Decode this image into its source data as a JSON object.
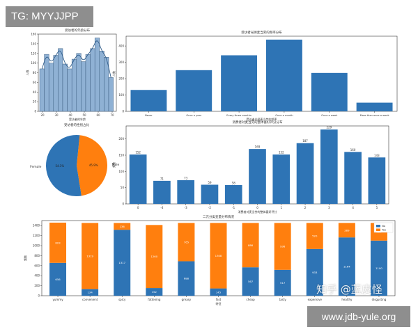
{
  "watermarks": {
    "top_left": "TG: MYYJJPP",
    "bottom_right": "www.jdb-yule.org",
    "overlay": "知乎 @蓝皮怪"
  },
  "colors": {
    "blue": "#2e74b5",
    "orange": "#ff7f0e",
    "hist": "#8fb1d4"
  },
  "chart_data": [
    {
      "id": "age_hist",
      "type": "bar",
      "title": "受访者的年龄分布",
      "xlabel": "受访者的年龄",
      "ylabel": "人数",
      "x_ticks": [
        "20",
        "30",
        "40",
        "50",
        "60",
        "70"
      ],
      "y_ticks": [
        "0",
        "20",
        "40",
        "60",
        "80",
        "100",
        "120",
        "140",
        "160"
      ],
      "xlim": [
        17,
        73
      ],
      "ylim": [
        0,
        160
      ],
      "bin_edges": [
        18,
        21.3,
        24.6,
        27.9,
        31.2,
        34.5,
        37.8,
        41.1,
        44.4,
        47.7,
        51,
        54.3,
        57.6,
        60.9,
        64.2,
        67.5,
        70.8
      ],
      "values": [
        88,
        118,
        100,
        116,
        130,
        98,
        88,
        108,
        120,
        103,
        118,
        130,
        152,
        125,
        112,
        70
      ],
      "kde_line": true
    },
    {
      "id": "frequency_bar",
      "type": "bar",
      "title": "受访者光顾麦当劳的频率分布",
      "xlabel": "受访者光顾麦当劳的频率",
      "ylabel": "人数",
      "categories": [
        "Never",
        "Once a year",
        "Every three months",
        "Once a month",
        "Once a week",
        "More than once a week"
      ],
      "values": [
        131,
        252,
        343,
        439,
        235,
        53
      ],
      "y_ticks": [
        "0",
        "100",
        "200",
        "300",
        "400"
      ],
      "ylim": [
        0,
        460
      ]
    },
    {
      "id": "gender_pie",
      "type": "pie",
      "title": "受访者的性别占比",
      "labels": [
        "Male",
        "Female"
      ],
      "percent_labels": [
        "45.9%",
        "54.1%"
      ],
      "values": [
        45.9,
        54.1
      ]
    },
    {
      "id": "like_bar",
      "type": "bar",
      "title": "消费者对麦当劳的整体喜好评分分布",
      "xlabel": "消费者对麦当劳的整体喜好评分",
      "ylabel": "频数",
      "categories": [
        "0",
        "-4",
        "-3",
        "-2",
        "-1",
        "0",
        "1",
        "2",
        "3",
        "4",
        "5"
      ],
      "values": [
        152,
        71,
        73,
        59,
        58,
        169,
        152,
        187,
        229,
        160,
        143
      ],
      "y_ticks": [
        "0",
        "50",
        "100",
        "150",
        "200"
      ],
      "ylim": [
        0,
        240
      ]
    },
    {
      "id": "attr_stacked",
      "type": "bar",
      "title": "二元分类变量分布情况",
      "xlabel": "特征",
      "ylabel": "频数",
      "categories": [
        "yummy",
        "convenient",
        "spicy",
        "fattening",
        "greasy",
        "fast",
        "cheap",
        "tasty",
        "expensive",
        "healthy",
        "disgusting"
      ],
      "series": [
        {
          "name": "No",
          "values": [
            656,
            134,
            1317,
            152,
            688,
            145,
            567,
            517,
            933,
            1164,
            1100
          ]
        },
        {
          "name": "Yes",
          "values": [
            803,
            1319,
            136,
            1260,
            765,
            1308,
            886,
            936,
            520,
            289,
            353
          ]
        }
      ],
      "legend": [
        "No",
        "Yes"
      ],
      "legend_position": "top-right",
      "y_ticks": [
        "0",
        "200",
        "400",
        "600",
        "800",
        "1000",
        "1200",
        "1400"
      ],
      "ylim": [
        0,
        1500
      ]
    }
  ]
}
